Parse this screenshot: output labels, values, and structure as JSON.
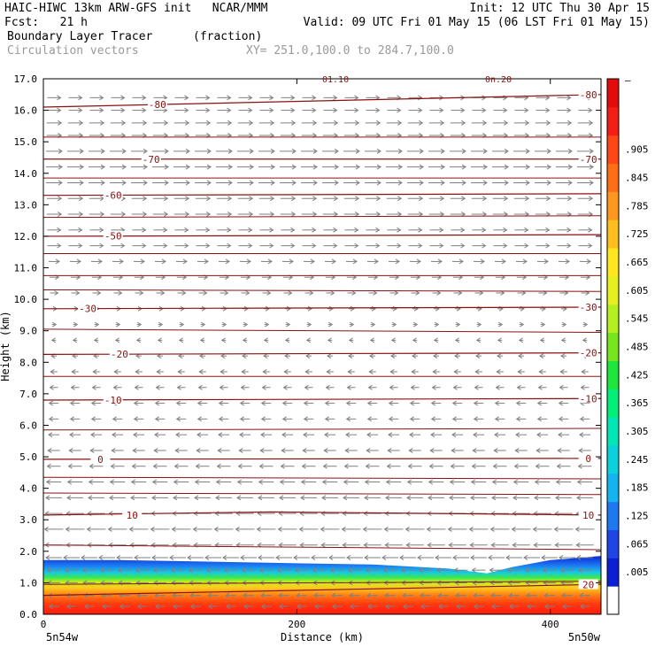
{
  "header": {
    "line1_left": "HAIC-HIWC 13km ARW-GFS init   NCAR/MMM",
    "line1_right": "Init: 12 UTC Thu 30 Apr 15",
    "line2_left": "Fcst:   21 h",
    "line2_right": "Valid: 09 UTC Fri 01 May 15 (06 LST Fri 01 May 15)",
    "field_name": "Boundary Layer Tracer",
    "field_units": "(fraction)",
    "vector_name": "Circulation vectors",
    "xy_range": "XY= 251.0,100.0 to 284.7,100.0"
  },
  "colors": {
    "contour": "#8b1010",
    "vector": "#808080",
    "scale": [
      "#ffffff",
      "#0a1fd6",
      "#1e46e6",
      "#1e78f0",
      "#14b4f0",
      "#0ad2dc",
      "#00e6b4",
      "#00f078",
      "#1ee63c",
      "#78e61e",
      "#b4f01e",
      "#e6f01e",
      "#ffe61e",
      "#ffbe1e",
      "#ff961e",
      "#ff6e14",
      "#ff4614",
      "#f51e14",
      "#e60a0a"
    ]
  },
  "chart_data": {
    "type": "heatmap",
    "title": "Boundary Layer Tracer (fraction)",
    "xlabel": "Distance (km)",
    "ylabel": "Height (km)",
    "xlim": [
      0,
      440
    ],
    "ylim": [
      0,
      17
    ],
    "x_ticks": [
      0,
      200,
      400
    ],
    "x_tick_labels": [
      "0",
      "200",
      "400"
    ],
    "y_ticks": [
      0,
      1,
      2,
      3,
      4,
      5,
      6,
      7,
      8,
      9,
      10,
      11,
      12,
      13,
      14,
      15,
      16,
      17
    ],
    "y_tick_labels": [
      "0.0",
      "1.0",
      "2.0",
      "3.0",
      "4.0",
      "5.0",
      "6.0",
      "7.0",
      "8.0",
      "9.0",
      "10.0",
      "11.0",
      "12.0",
      "13.0",
      "14.0",
      "15.0",
      "16.0",
      "17.0"
    ],
    "x_end_labels": [
      "5n54w",
      "5n50w"
    ],
    "colorbar_labels": [
      ".905",
      ".845",
      ".785",
      ".725",
      ".665",
      ".605",
      ".545",
      ".485",
      ".425",
      ".365",
      ".305",
      ".245",
      ".185",
      ".125",
      ".065",
      ".005"
    ],
    "colorbar_top_label": "–",
    "tracer_top_km": [
      [
        0,
        1.72
      ],
      [
        60,
        1.72
      ],
      [
        120,
        1.68
      ],
      [
        200,
        1.62
      ],
      [
        260,
        1.58
      ],
      [
        320,
        1.45
      ],
      [
        350,
        1.3
      ],
      [
        370,
        1.5
      ],
      [
        400,
        1.72
      ],
      [
        440,
        1.85
      ]
    ],
    "contour_label_fragments": [
      "01.10",
      "0n.20"
    ],
    "isotherms": [
      {
        "label": "20",
        "km": [
          [
            0,
            0.6
          ],
          [
            440,
            0.95
          ]
        ],
        "label_positions": [
          430
        ]
      },
      {
        "label": "10",
        "km": [
          [
            0,
            3.15
          ],
          [
            180,
            3.25
          ],
          [
            440,
            3.15
          ]
        ],
        "label_positions": [
          70,
          430
        ]
      },
      {
        "label": "0",
        "km": [
          [
            0,
            4.92
          ],
          [
            440,
            4.95
          ]
        ],
        "label_positions": [
          45,
          430
        ]
      },
      {
        "label": "-10",
        "km": [
          [
            0,
            6.8
          ],
          [
            440,
            6.85
          ]
        ],
        "label_positions": [
          55,
          430
        ]
      },
      {
        "label": "-20",
        "km": [
          [
            0,
            8.25
          ],
          [
            440,
            8.3
          ]
        ],
        "label_positions": [
          60,
          430
        ]
      },
      {
        "label": "-30",
        "km": [
          [
            0,
            9.7
          ],
          [
            440,
            9.75
          ]
        ],
        "label_positions": [
          35,
          430
        ]
      },
      {
        "label": "-50",
        "km": [
          [
            0,
            12.0
          ],
          [
            440,
            12.05
          ]
        ],
        "label_positions": [
          55
        ]
      },
      {
        "label": "-60",
        "km": [
          [
            0,
            13.3
          ],
          [
            440,
            13.35
          ]
        ],
        "label_positions": [
          55
        ]
      },
      {
        "label": "-70",
        "km": [
          [
            0,
            14.45
          ],
          [
            440,
            14.45
          ]
        ],
        "label_positions": [
          85,
          430
        ]
      },
      {
        "label": "-80",
        "km": [
          [
            0,
            16.1
          ],
          [
            440,
            16.5
          ]
        ],
        "label_positions": [
          90,
          430
        ]
      }
    ],
    "extra_contours_km": [
      [
        0,
        0.95,
        440,
        1.05
      ],
      [
        0,
        2.2,
        440,
        2.05
      ],
      [
        0,
        3.85,
        440,
        3.8
      ],
      [
        0,
        4.35,
        440,
        4.3
      ],
      [
        0,
        5.85,
        440,
        5.9
      ],
      [
        0,
        7.55,
        440,
        7.55
      ],
      [
        0,
        9.05,
        440,
        8.95
      ],
      [
        0,
        10.3,
        440,
        10.25
      ],
      [
        0,
        10.75,
        440,
        10.75
      ],
      [
        0,
        11.45,
        440,
        11.45
      ],
      [
        0,
        12.6,
        440,
        12.65
      ],
      [
        0,
        13.85,
        440,
        13.85
      ],
      [
        0,
        15.15,
        440,
        15.15
      ]
    ],
    "vector_rows": [
      {
        "km": 16.4,
        "u": 0.8
      },
      {
        "km": 16.0,
        "u": 0.8
      },
      {
        "km": 15.6,
        "u": 0.9
      },
      {
        "km": 15.2,
        "u": 0.9
      },
      {
        "km": 14.7,
        "u": 1.0
      },
      {
        "km": 14.2,
        "u": 1.0
      },
      {
        "km": 13.7,
        "u": 1.0
      },
      {
        "km": 13.2,
        "u": 0.9
      },
      {
        "km": 12.7,
        "u": 0.9
      },
      {
        "km": 12.2,
        "u": 0.8
      },
      {
        "km": 11.7,
        "u": 0.8
      },
      {
        "km": 11.2,
        "u": 0.6
      },
      {
        "km": 10.7,
        "u": 0.5
      },
      {
        "km": 10.2,
        "u": 0.4
      },
      {
        "km": 9.7,
        "u": 0.2
      },
      {
        "km": 9.2,
        "u": 0.1
      },
      {
        "km": 8.7,
        "u": -0.1
      },
      {
        "km": 8.2,
        "u": -0.2
      },
      {
        "km": 7.7,
        "u": -0.3
      },
      {
        "km": 7.2,
        "u": -0.4
      },
      {
        "km": 6.7,
        "u": -0.5
      },
      {
        "km": 6.2,
        "u": -0.5
      },
      {
        "km": 5.7,
        "u": -0.6
      },
      {
        "km": 5.2,
        "u": -0.7
      },
      {
        "km": 4.7,
        "u": -0.8
      },
      {
        "km": 4.2,
        "u": -0.9
      },
      {
        "km": 3.7,
        "u": -1.0
      },
      {
        "km": 3.2,
        "u": -1.1
      },
      {
        "km": 2.7,
        "u": -1.2
      },
      {
        "km": 2.2,
        "u": -1.1
      },
      {
        "km": 1.8,
        "u": -1.0
      },
      {
        "km": 1.4,
        "u": -0.8
      },
      {
        "km": 1.0,
        "u": -0.7
      },
      {
        "km": 0.6,
        "u": -0.6
      },
      {
        "km": 0.25,
        "u": -0.5
      }
    ]
  }
}
